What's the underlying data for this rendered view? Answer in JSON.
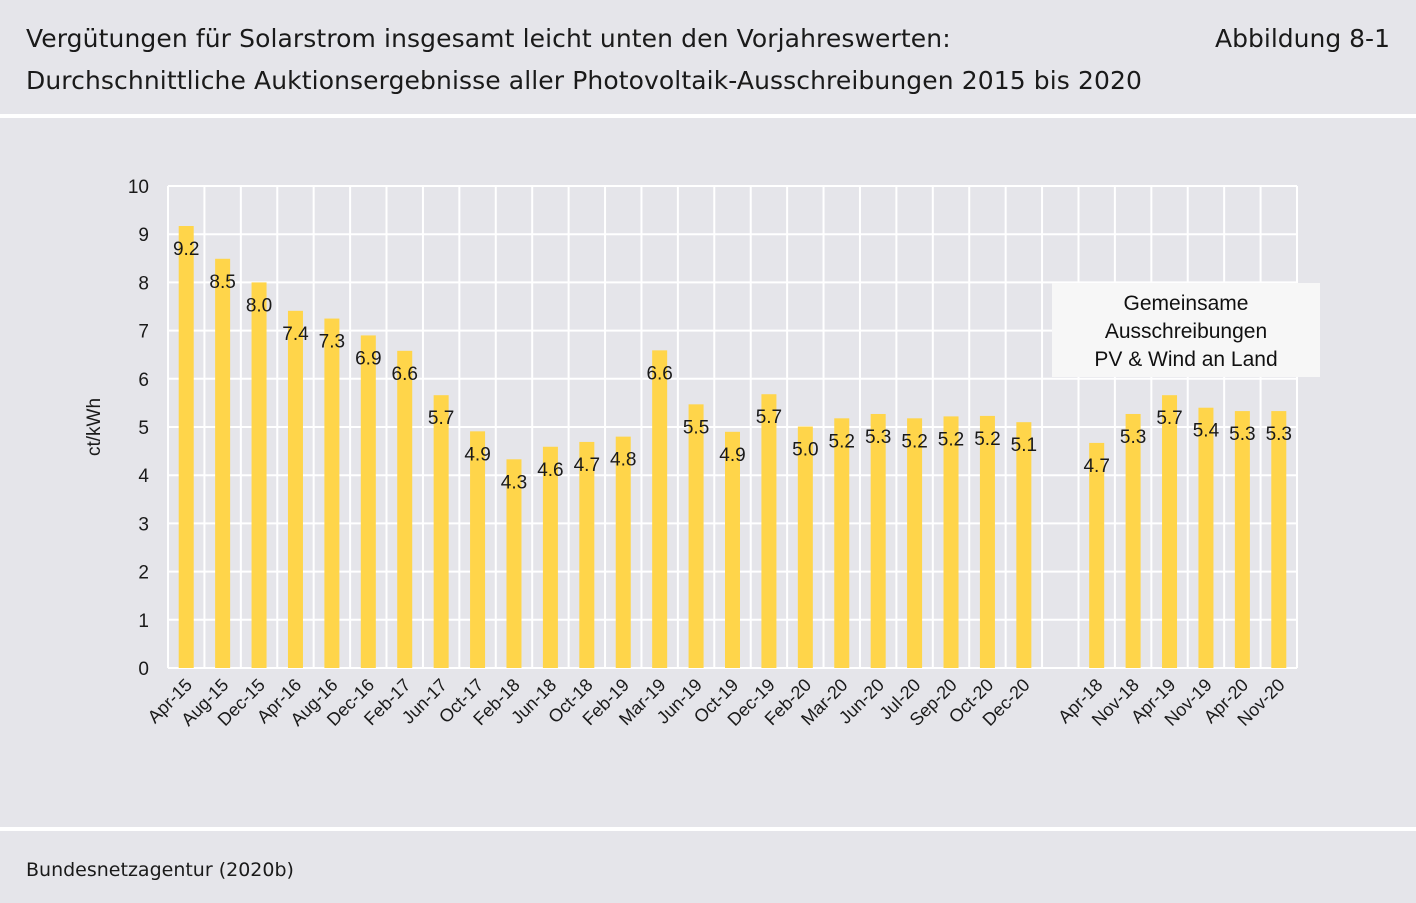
{
  "header": {
    "title_line1": "Vergütungen für Solarstrom insgesamt leicht unten den Vorjahreswerten:",
    "title_line2": "Durchschnittliche Auktionsergebnisse aller Photovoltaik-Ausschreibungen 2015 bis 2020",
    "figure_label": "Abbildung 8-1"
  },
  "footer": {
    "source": "Bundesnetzagentur (2020b)"
  },
  "colors": {
    "bar": "#ffd54a",
    "background": "#e5e5ea",
    "grid": "#ffffff",
    "annotation_box": "#f7f7f7"
  },
  "chart_data": {
    "type": "bar",
    "ylabel": "ct/kWh",
    "ylim": [
      0,
      10
    ],
    "yticks": [
      0,
      1,
      2,
      3,
      4,
      5,
      6,
      7,
      8,
      9,
      10
    ],
    "grid": true,
    "groups": [
      {
        "categories": [
          "Apr-15",
          "Aug-15",
          "Dec-15",
          "Apr-16",
          "Aug-16",
          "Dec-16",
          "Feb-17",
          "Jun-17",
          "Oct-17",
          "Feb-18",
          "Jun-18",
          "Oct-18",
          "Feb-19",
          "Mar-19",
          "Jun-19",
          "Oct-19",
          "Dec-19",
          "Feb-20",
          "Mar-20",
          "Jun-20",
          "Jul-20",
          "Sep-20",
          "Oct-20",
          "Dec-20"
        ],
        "values": [
          9.17,
          8.49,
          8.0,
          7.41,
          7.25,
          6.9,
          6.58,
          5.66,
          4.91,
          4.33,
          4.59,
          4.69,
          4.8,
          6.59,
          5.47,
          4.9,
          5.68,
          5.01,
          5.18,
          5.27,
          5.18,
          5.22,
          5.23,
          5.1
        ],
        "labels": [
          "9.2",
          "8.5",
          "8.0",
          "7.4",
          "7.3",
          "6.9",
          "6.6",
          "5.7",
          "4.9",
          "4.3",
          "4.6",
          "4.7",
          "4.8",
          "6.6",
          "5.5",
          "4.9",
          "5.7",
          "5.0",
          "5.2",
          "5.3",
          "5.2",
          "5.2",
          "5.2",
          "5.1"
        ]
      },
      {
        "categories": [
          "Apr-18",
          "Nov-18",
          "Apr-19",
          "Nov-19",
          "Apr-20",
          "Nov-20"
        ],
        "values": [
          4.67,
          5.27,
          5.66,
          5.4,
          5.33,
          5.33
        ],
        "labels": [
          "4.7",
          "5.3",
          "5.7",
          "5.4",
          "5.3",
          "5.3"
        ]
      }
    ],
    "annotation": {
      "lines": [
        "Gemeinsame",
        "Ausschreibungen",
        "PV &  Wind an Land"
      ]
    }
  }
}
